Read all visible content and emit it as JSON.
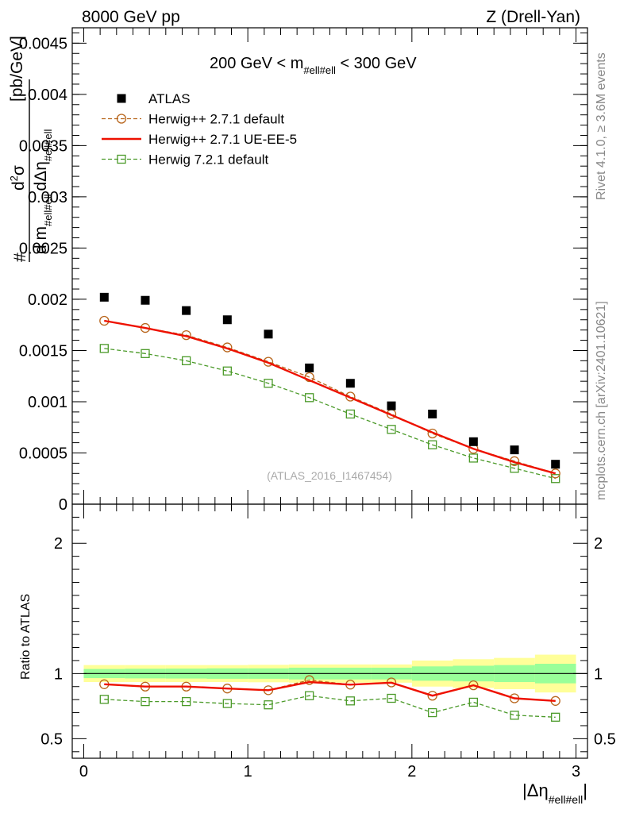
{
  "header": {
    "left": "8000 GeV pp",
    "right": "Z (Drell-Yan)"
  },
  "side_labels": {
    "rivet": "Rivet 4.1.0, ≥ 3.6M events",
    "mcplots": "mcplots.cern.ch [arXiv:2401.10621]"
  },
  "chart_data": [
    {
      "type": "scatter",
      "panel": "main",
      "title": "200 GeV < m_{#ell#ell} < 300 GeV",
      "title_text": "200 GeV < m",
      "title_sub": "#ell#ell",
      "title_tail": " < 300 GeV",
      "ylabel": "d²σ / d m_{#ell#ell} dΔη_{#ell#ell} [pb/GeV]",
      "ylabel_parts": {
        "d2sigma": "d",
        "sup2": "2",
        "sigma": "σ",
        "denom_d": "d m",
        "denom_sub": "#ell#ell",
        "denom_deta": "dΔη",
        "deta_sub": "#ell#ell",
        "units": "[pb/GeV]",
        "hash": "#"
      },
      "xlim": [
        -0.07,
        3.07
      ],
      "ylim": [
        0,
        0.00465
      ],
      "yticks": [
        0,
        0.0005,
        0.001,
        0.0015,
        0.002,
        0.0025,
        0.003,
        0.0035,
        0.004,
        0.0045
      ],
      "ytick_labels": [
        "0",
        "0.0005",
        "0.001",
        "0.0015",
        "0.002",
        "0.0025",
        "0.003",
        "0.0035",
        "0.004",
        "0.0045"
      ],
      "x": [
        0.125,
        0.375,
        0.625,
        0.875,
        1.125,
        1.375,
        1.625,
        1.875,
        2.125,
        2.375,
        2.625,
        2.875
      ],
      "series": [
        {
          "name": "ATLAS",
          "marker": "square-filled",
          "color": "#000000",
          "values": [
            0.00202,
            0.00199,
            0.00189,
            0.0018,
            0.00166,
            0.00133,
            0.00118,
            0.00096,
            0.00088,
            0.00061,
            0.00053,
            0.00039
          ]
        },
        {
          "name": "Herwig++ 2.7.1 default",
          "marker": "circle-open",
          "line": "dashed",
          "color": "#b8651b",
          "values": [
            0.00179,
            0.00172,
            0.00165,
            0.00153,
            0.00139,
            0.00124,
            0.00105,
            0.00088,
            0.00069,
            0.00054,
            0.00042,
            0.0003
          ]
        },
        {
          "name": "Herwig++ 2.7.1 UE-EE-5",
          "marker": "none",
          "line": "solid",
          "color": "#ee1100",
          "values": [
            0.00179,
            0.00172,
            0.00164,
            0.00152,
            0.00138,
            0.00121,
            0.00104,
            0.00087,
            0.0007,
            0.00054,
            0.00041,
            0.0003
          ]
        },
        {
          "name": "Herwig 7.2.1 default",
          "marker": "square-open",
          "line": "dashed",
          "color": "#4b9a29",
          "values": [
            0.00152,
            0.00147,
            0.0014,
            0.0013,
            0.00118,
            0.00104,
            0.00088,
            0.00073,
            0.00058,
            0.00045,
            0.00035,
            0.00025
          ]
        }
      ],
      "annotation": "(ATLAS_2016_I1467454)"
    },
    {
      "type": "line",
      "panel": "ratio",
      "ylabel": "Ratio to ATLAS",
      "xlabel": "|Δη_{#ell#ell}|",
      "xlabel_parts": {
        "bar_open": "|",
        "deta": "Δη",
        "sub": "#ell#ell",
        "bar_close": "|"
      },
      "xlim": [
        -0.07,
        3.07
      ],
      "ylim": [
        0.35,
        2.3
      ],
      "xticks": [
        0,
        1,
        2,
        3
      ],
      "xtick_labels": [
        "0",
        "1",
        "2",
        "3"
      ],
      "yticks": [
        0.5,
        1,
        2
      ],
      "ytick_labels": [
        "0.5",
        "1",
        "2"
      ],
      "bin_edges": [
        0,
        0.25,
        0.5,
        0.75,
        1.0,
        1.25,
        1.5,
        1.75,
        2.0,
        2.25,
        2.5,
        2.75,
        3.0
      ],
      "band_outer": {
        "color": "#ffff99",
        "half_width": [
          0.065,
          0.065,
          0.065,
          0.065,
          0.067,
          0.07,
          0.07,
          0.07,
          0.1,
          0.11,
          0.12,
          0.145
        ]
      },
      "band_inner": {
        "color": "#99ff99",
        "half_width": [
          0.035,
          0.037,
          0.038,
          0.04,
          0.04,
          0.045,
          0.045,
          0.045,
          0.055,
          0.06,
          0.065,
          0.075
        ]
      },
      "x": [
        0.125,
        0.375,
        0.625,
        0.875,
        1.125,
        1.375,
        1.625,
        1.875,
        2.125,
        2.375,
        2.625,
        2.875
      ],
      "series": [
        {
          "name": "Herwig++ 2.7.1 default",
          "marker": "circle-open",
          "line": "dashed",
          "color": "#b8651b",
          "values": [
            0.918,
            0.9,
            0.9,
            0.885,
            0.872,
            0.95,
            0.915,
            0.932,
            0.83,
            0.91,
            0.81,
            0.79
          ]
        },
        {
          "name": "Herwig++ 2.7.1 UE-EE-5",
          "marker": "none",
          "line": "solid",
          "color": "#ee1100",
          "values": [
            0.918,
            0.9,
            0.9,
            0.885,
            0.872,
            0.935,
            0.915,
            0.93,
            0.83,
            0.91,
            0.81,
            0.79
          ]
        },
        {
          "name": "Herwig 7.2.1 default",
          "marker": "square-open",
          "line": "dashed",
          "color": "#4b9a29",
          "values": [
            0.802,
            0.785,
            0.785,
            0.77,
            0.76,
            0.83,
            0.79,
            0.81,
            0.7,
            0.78,
            0.68,
            0.665
          ]
        }
      ]
    }
  ]
}
